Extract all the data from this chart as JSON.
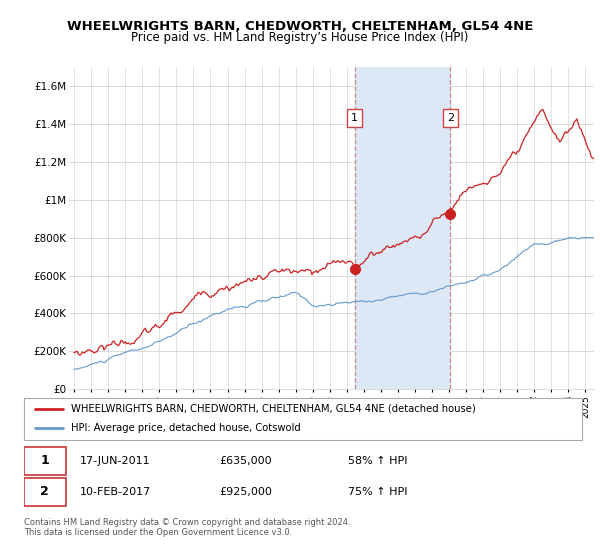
{
  "title": "WHEELWRIGHTS BARN, CHEDWORTH, CHELTENHAM, GL54 4NE",
  "subtitle": "Price paid vs. HM Land Registry’s House Price Index (HPI)",
  "legend_line1": "WHEELWRIGHTS BARN, CHEDWORTH, CHELTENHAM, GL54 4NE (detached house)",
  "legend_line2": "HPI: Average price, detached house, Cotswold",
  "footnote": "Contains HM Land Registry data © Crown copyright and database right 2024.\nThis data is licensed under the Open Government Licence v3.0.",
  "transaction1_label": "1",
  "transaction1_date": "17-JUN-2011",
  "transaction1_price": "£635,000",
  "transaction1_hpi": "58% ↑ HPI",
  "transaction2_label": "2",
  "transaction2_date": "10-FEB-2017",
  "transaction2_price": "£925,000",
  "transaction2_hpi": "75% ↑ HPI",
  "hpi_color": "#6699cc",
  "property_color": "#cc2222",
  "highlight_color": "#dce8f5",
  "dashed_color": "#cc8888",
  "ylim_min": 0,
  "ylim_max": 1700000,
  "yticks": [
    0,
    200000,
    400000,
    600000,
    800000,
    1000000,
    1200000,
    1400000,
    1600000
  ],
  "ytick_labels": [
    "£0",
    "£200K",
    "£400K",
    "£600K",
    "£800K",
    "£1M",
    "£1.2M",
    "£1.4M",
    "£1.6M"
  ],
  "transaction1_x": 2011.46,
  "transaction1_y": 635000,
  "transaction2_x": 2017.08,
  "transaction2_y": 925000,
  "highlight_x1": 2011.46,
  "highlight_x2": 2017.08,
  "xmin": 1995.0,
  "xmax": 2025.5
}
